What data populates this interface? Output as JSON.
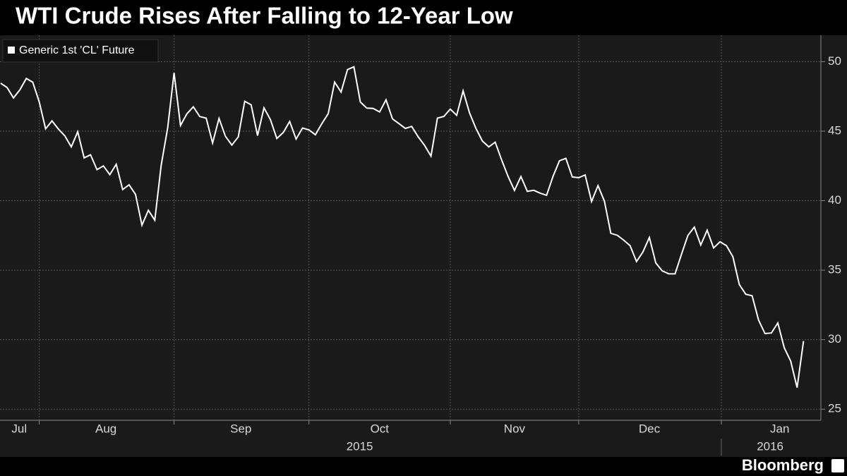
{
  "chart_data": {
    "type": "line",
    "title": "WTI Crude Rises After Falling to 12-Year Low",
    "series": [
      {
        "name": "Generic 1st 'CL' Future",
        "color": "#ffffff",
        "values": [
          48.45,
          48.14,
          47.39,
          47.98,
          48.79,
          48.52,
          47.12,
          45.17,
          45.74,
          45.15,
          44.66,
          43.87,
          44.96,
          43.08,
          43.3,
          42.23,
          42.5,
          41.87,
          42.62,
          40.8,
          41.14,
          40.45,
          38.24,
          39.31,
          38.6,
          42.56,
          45.22,
          49.2,
          45.41,
          46.25,
          46.75,
          46.05,
          45.94,
          44.15,
          45.92,
          44.63,
          44.0,
          44.59,
          47.15,
          46.9,
          44.68,
          46.68,
          45.83,
          44.48,
          44.9,
          45.7,
          44.43,
          45.23,
          45.09,
          44.74,
          45.54,
          46.26,
          48.53,
          47.81,
          49.43,
          49.63,
          47.1,
          46.66,
          46.64,
          46.38,
          47.26,
          45.89,
          45.55,
          45.2,
          45.34,
          44.6,
          43.98,
          43.2,
          45.94,
          46.06,
          46.59,
          46.14,
          47.9,
          46.32,
          45.2,
          44.29,
          43.87,
          44.21,
          42.93,
          41.75,
          40.74,
          41.74,
          40.67,
          40.75,
          40.54,
          40.39,
          41.75,
          42.87,
          43.04,
          41.71,
          41.65,
          41.85,
          39.94,
          41.08,
          39.97,
          37.65,
          37.51,
          37.16,
          36.76,
          35.62,
          36.31,
          37.35,
          35.52,
          34.95,
          34.74,
          34.73,
          36.14,
          37.5,
          38.1,
          36.81,
          37.87,
          36.6,
          37.04,
          36.76,
          35.97,
          33.97,
          33.27,
          33.16,
          31.41,
          30.44,
          30.48,
          31.2,
          29.42,
          28.46,
          26.55,
          29.9
        ]
      }
    ],
    "ylim": [
      24.2,
      51.9
    ],
    "yticks": [
      25,
      30,
      35,
      40,
      45,
      50
    ],
    "grid": true,
    "xlim": [
      -0.1,
      127.7
    ],
    "xticks": [
      {
        "value": 2.9,
        "label": "Jul"
      },
      {
        "value": 16.4,
        "label": "Aug"
      },
      {
        "value": 37.4,
        "label": "Sep"
      },
      {
        "value": 59,
        "label": "Oct"
      },
      {
        "value": 80,
        "label": "Nov"
      },
      {
        "value": 101,
        "label": "Dec"
      },
      {
        "value": 121.3,
        "label": "Jan"
      }
    ],
    "xgrid": [
      6,
      27,
      48,
      70,
      90,
      112.2
    ],
    "years": [
      {
        "value": 55.9,
        "label": "2015"
      },
      {
        "value": 119.8,
        "label": "2016"
      }
    ],
    "year_divider": 112.2,
    "source": "Bloomberg"
  }
}
